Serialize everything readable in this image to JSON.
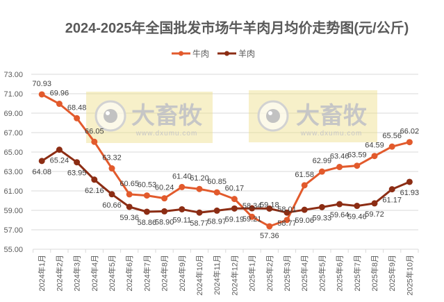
{
  "chart_data": {
    "type": "line",
    "title": "2024-2025年全国批发市场牛羊肉月均价走势图(元/公斤)",
    "xlabel": "",
    "ylabel": "",
    "ylim": [
      55,
      73
    ],
    "ystep": 2,
    "yticks": [
      "73.00",
      "71.00",
      "69.00",
      "67.00",
      "65.00",
      "63.00",
      "61.00",
      "59.00",
      "57.00",
      "55.00"
    ],
    "grid": true,
    "legend_position": "top",
    "categories": [
      "2024年1月",
      "2024年2月",
      "2024年3月",
      "2024年4月",
      "2024年5月",
      "2024年6月",
      "2024年7月",
      "2024年8月",
      "2024年9月",
      "2024年10月",
      "2024年11月",
      "2024年12月",
      "2025年1月",
      "2025年2月",
      "2025年3月",
      "2025年4月",
      "2025年5月",
      "2025年6月",
      "2025年7月",
      "2025年8月",
      "2025年9月",
      "2025年10月"
    ],
    "series": [
      {
        "name": "牛肉",
        "color": "#E25A2C",
        "values": [
          70.93,
          69.96,
          68.48,
          66.05,
          63.32,
          60.65,
          60.53,
          60.24,
          61.4,
          61.2,
          60.85,
          60.17,
          58.34,
          57.36,
          58.01,
          61.58,
          62.99,
          63.46,
          63.59,
          64.59,
          65.56,
          66.02
        ],
        "labels": [
          "70.93",
          "69.96",
          "68.48",
          "66.05",
          "63.32",
          "60.65",
          "60.53",
          "60.24",
          "61.40",
          "61.20",
          "60.85",
          "60.17",
          "58.34",
          "57.36",
          "58.01",
          "61.58",
          "62.99",
          "63.46",
          "63.59",
          "64.59",
          "65.56",
          "66.02"
        ],
        "label_positions": [
          "above",
          "above",
          "above",
          "above",
          "above",
          "above",
          "above",
          "above",
          "above",
          "above",
          "above",
          "above",
          "above",
          "below",
          "above",
          "above",
          "above",
          "above",
          "above",
          "above",
          "above",
          "above"
        ],
        "label_above_dy": -12,
        "label_below_dy": 17
      },
      {
        "name": "羊肉",
        "color": "#8C2D14",
        "values": [
          64.08,
          65.24,
          63.95,
          62.16,
          60.66,
          59.36,
          58.86,
          58.9,
          59.11,
          58.77,
          58.97,
          59.19,
          59.21,
          59.18,
          58.77,
          59.06,
          59.33,
          59.64,
          59.46,
          59.72,
          61.17,
          61.93
        ],
        "labels": [
          "64.08",
          "65.24",
          "63.95",
          "62.16",
          "60.66",
          "59.36",
          "58.86",
          "58.90",
          "59.11",
          "58.77",
          "58.97",
          "59.19",
          "59.21",
          "59.18",
          "58.77",
          "59.06",
          "59.33",
          "59.64",
          "59.46",
          "59.72",
          "61.17",
          "61.93"
        ],
        "label_positions": [
          "below",
          "below",
          "below",
          "below",
          "below",
          "below",
          "below",
          "below",
          "below",
          "below",
          "below",
          "below",
          "below",
          "above",
          "below",
          "below",
          "below",
          "below",
          "below",
          "below",
          "below",
          "below"
        ],
        "label_above_dy": -2,
        "label_below_dy": 19
      }
    ]
  },
  "legend": {
    "items": [
      {
        "label": "牛肉",
        "color": "#E25A2C"
      },
      {
        "label": "羊肉",
        "color": "#8C2D14"
      }
    ]
  },
  "watermark": {
    "brand": "大畜牧",
    "url": "www.dxumu.com",
    "icon": "camera-lens-logo-icon"
  }
}
